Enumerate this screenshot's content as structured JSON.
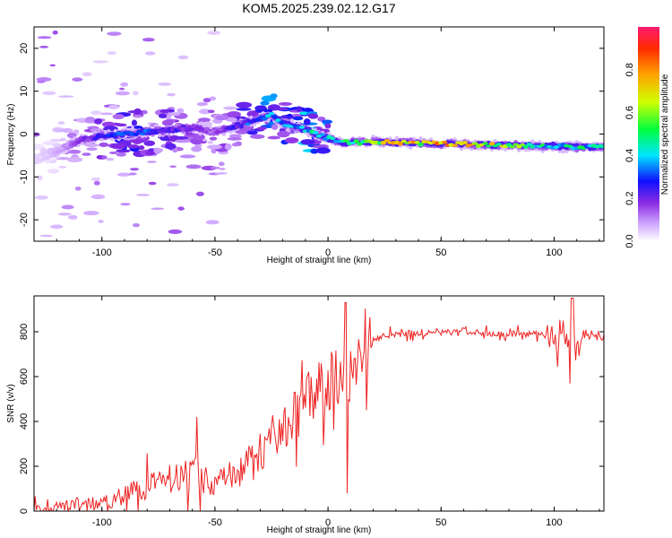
{
  "title": "KOM5.2025.239.02.12.G17",
  "chart_data": [
    {
      "type": "heatmap",
      "name": "spectrogram",
      "xlabel": "Height of straight line (km)",
      "ylabel": "Frequency (Hz)",
      "xlim": [
        -130,
        122
      ],
      "ylim": [
        -25,
        25
      ],
      "xticks": [
        -100,
        -50,
        0,
        50,
        100
      ],
      "yticks": [
        -20,
        -10,
        0,
        10,
        20
      ],
      "colorbar": {
        "label": "Normalized spectral amplitude",
        "range": [
          0,
          1
        ],
        "ticks": [
          "0.0",
          "0.2",
          "0.4",
          "0.6",
          "0.8"
        ],
        "colors": [
          "#ffffff",
          "#d0a8ff",
          "#8a2be2",
          "#1010ff",
          "#00e5ff",
          "#00ff40",
          "#d0ff00",
          "#ffa000",
          "#ff2a00",
          "#ff1a70"
        ]
      },
      "ridge": {
        "x": [
          -130,
          -120,
          -110,
          -100,
          -90,
          -80,
          -70,
          -60,
          -50,
          -40,
          -30,
          -25,
          -20,
          -10,
          0,
          5,
          10,
          20,
          30,
          50,
          70,
          90,
          100,
          110,
          122
        ],
        "freq": [
          -6,
          -4,
          -1.5,
          -0.5,
          0,
          0.5,
          1,
          1.5,
          0.5,
          2,
          3.5,
          4.5,
          2.5,
          1,
          -1,
          -1.8,
          -2,
          -1.8,
          -2,
          -2.2,
          -2.5,
          -2.8,
          -2.8,
          -3,
          -3
        ],
        "amp": [
          0.05,
          0.1,
          0.2,
          0.3,
          0.35,
          0.35,
          0.3,
          0.25,
          0.2,
          0.3,
          0.4,
          0.45,
          0.4,
          0.5,
          0.45,
          0.5,
          0.55,
          0.65,
          0.7,
          0.75,
          0.7,
          0.55,
          0.45,
          0.5,
          0.45
        ]
      }
    },
    {
      "type": "line",
      "name": "snr",
      "xlabel": "Height of straight line (km)",
      "ylabel": "SNR (v/v)",
      "xlim": [
        -130,
        122
      ],
      "ylim": [
        0,
        960
      ],
      "xticks": [
        -100,
        -50,
        0,
        50,
        100
      ],
      "yticks": [
        0,
        200,
        400,
        600,
        800
      ],
      "color": "#ee2222",
      "x": [
        -130,
        -110,
        -100,
        -90,
        -80,
        -70,
        -60,
        -50,
        -40,
        -30,
        -25,
        -20,
        -15,
        -10,
        -5,
        0,
        5,
        8,
        10,
        15,
        20,
        30,
        40,
        50,
        60,
        70,
        80,
        90,
        100,
        105,
        108,
        112,
        122
      ],
      "y": [
        10,
        25,
        40,
        70,
        110,
        150,
        170,
        130,
        160,
        260,
        330,
        360,
        420,
        480,
        540,
        580,
        620,
        650,
        540,
        740,
        770,
        790,
        795,
        800,
        800,
        795,
        790,
        790,
        780,
        770,
        690,
        775,
        775
      ]
    }
  ]
}
